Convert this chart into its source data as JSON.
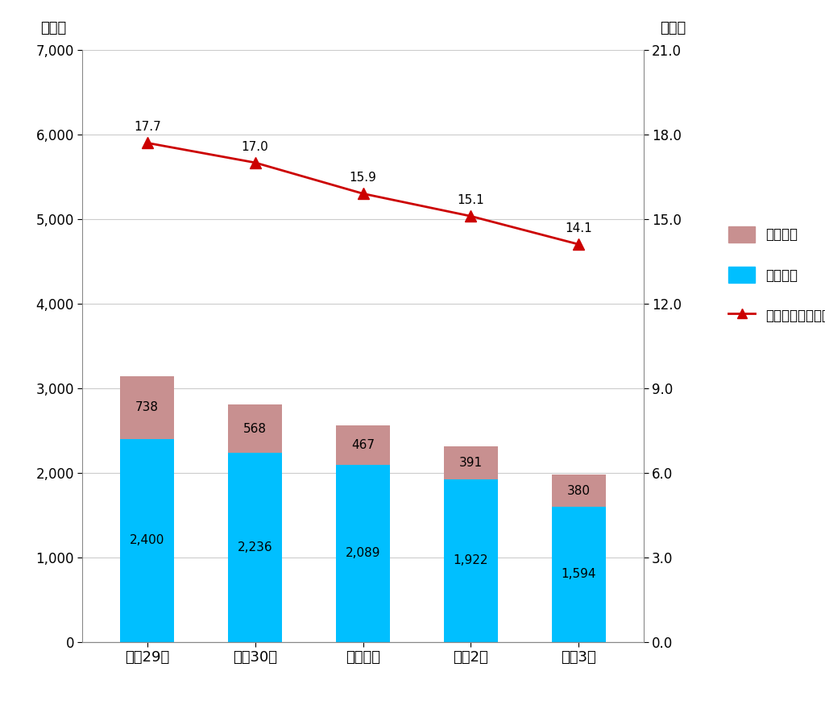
{
  "categories": [
    "平成29年",
    "平成30年",
    "令和元年",
    "令和2年",
    "令和3年"
  ],
  "crime_youth": [
    2400,
    2236,
    2089,
    1922,
    1594
  ],
  "touch_law_youth": [
    738,
    568,
    467,
    391,
    380
  ],
  "ratio": [
    17.7,
    17.0,
    15.9,
    15.1,
    14.1
  ],
  "bar_color_crime": "#00BFFF",
  "bar_color_touch": "#C89090",
  "line_color": "#CC0000",
  "ylabel_left": "（人）",
  "ylabel_right": "（％）",
  "ylim_left": [
    0,
    7000
  ],
  "ylim_right": [
    0.0,
    21.0
  ],
  "yticks_left": [
    0,
    1000,
    2000,
    3000,
    4000,
    5000,
    6000,
    7000
  ],
  "yticks_right": [
    0.0,
    3.0,
    6.0,
    9.0,
    12.0,
    15.0,
    18.0,
    21.0
  ],
  "legend_touch": "触法少年",
  "legend_crime": "犯罪少年",
  "legend_ratio": "少年の占める割合",
  "background_color": "#ffffff",
  "grid_color": "#cccccc"
}
